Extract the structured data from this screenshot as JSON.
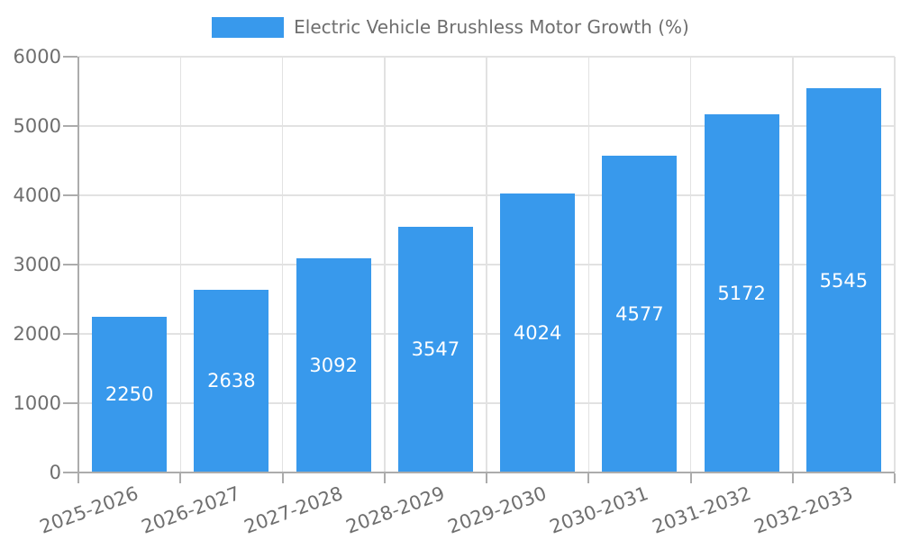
{
  "legend": {
    "label": "Electric Vehicle Brushless Motor Growth (%)"
  },
  "chart_data": {
    "type": "bar",
    "title": "Electric Vehicle Brushless Motor Growth (%)",
    "categories": [
      "2025-2026",
      "2026-2027",
      "2027-2028",
      "2028-2029",
      "2029-2030",
      "2030-2031",
      "2031-2032",
      "2032-2033"
    ],
    "values": [
      2250,
      2638,
      3092,
      3547,
      4024,
      4577,
      5172,
      5545
    ],
    "series": [
      {
        "name": "Electric Vehicle Brushless Motor Growth (%)",
        "values": [
          2250,
          2638,
          3092,
          3547,
          4024,
          4577,
          5172,
          5545
        ]
      }
    ],
    "xlabel": "",
    "ylabel": "",
    "ylim": [
      0,
      6000
    ],
    "yticks": [
      0,
      1000,
      2000,
      3000,
      4000,
      5000,
      6000
    ],
    "grid": true,
    "bar_value_labels": true,
    "legend_position": "top-center",
    "x_label_rotation_deg": -20,
    "colors": {
      "bar": "#3899EC",
      "grid": "#E2E2E2",
      "axis": "#ACACAC",
      "tick_text": "#6F6F6F",
      "legend_text": "#6E6E6E",
      "bar_label": "#FFFFFF",
      "background": "#FFFFFF"
    }
  }
}
